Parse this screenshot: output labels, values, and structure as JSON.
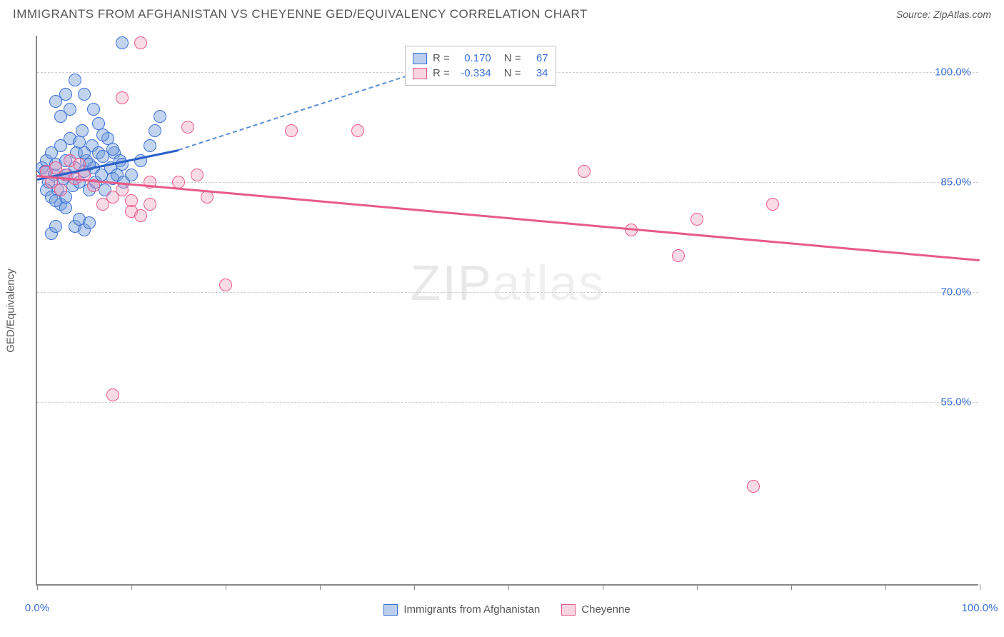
{
  "header": {
    "title": "IMMIGRANTS FROM AFGHANISTAN VS CHEYENNE GED/EQUIVALENCY CORRELATION CHART",
    "source": "Source: ZipAtlas.com"
  },
  "chart": {
    "type": "scatter",
    "ylabel": "GED/Equivalency",
    "xlim": [
      0,
      100
    ],
    "ylim": [
      30,
      105
    ],
    "x_ticks": [
      0,
      10,
      20,
      30,
      40,
      50,
      60,
      70,
      80,
      90,
      100
    ],
    "x_tick_labels": {
      "0": "0.0%",
      "100": "100.0%"
    },
    "y_ticks": [
      55,
      70,
      85,
      100
    ],
    "y_tick_labels": {
      "55": "55.0%",
      "70": "70.0%",
      "85": "85.0%",
      "100": "100.0%"
    },
    "grid_color": "#d0d0d0",
    "axis_color": "#888888",
    "background_color": "#ffffff",
    "watermark": {
      "text_bold": "ZIP",
      "text_thin": "atlas"
    },
    "series": [
      {
        "name": "Immigrants from Afghanistan",
        "color_fill": "rgba(120,160,220,0.45)",
        "color_stroke": "#3a6fd8",
        "marker_radius": 9,
        "points": [
          [
            0.5,
            87
          ],
          [
            0.8,
            86.5
          ],
          [
            1,
            88
          ],
          [
            1.2,
            85
          ],
          [
            1.5,
            89
          ],
          [
            1.8,
            86
          ],
          [
            2,
            87.5
          ],
          [
            2.2,
            84
          ],
          [
            2.5,
            90
          ],
          [
            2.8,
            85.5
          ],
          [
            3,
            88
          ],
          [
            3.2,
            86
          ],
          [
            3.5,
            91
          ],
          [
            3.8,
            84.5
          ],
          [
            4,
            87
          ],
          [
            4.2,
            89
          ],
          [
            4.5,
            85
          ],
          [
            4.8,
            92
          ],
          [
            5,
            86.5
          ],
          [
            5.2,
            88
          ],
          [
            5.5,
            84
          ],
          [
            5.8,
            90
          ],
          [
            6,
            87
          ],
          [
            6.2,
            85
          ],
          [
            6.5,
            89
          ],
          [
            6.8,
            86
          ],
          [
            7,
            88.5
          ],
          [
            7.2,
            84
          ],
          [
            7.5,
            91
          ],
          [
            7.8,
            87
          ],
          [
            8,
            85.5
          ],
          [
            8.2,
            89
          ],
          [
            8.5,
            86
          ],
          [
            8.8,
            88
          ],
          [
            9,
            104
          ],
          [
            9.2,
            85
          ],
          [
            2,
            96
          ],
          [
            2.5,
            94
          ],
          [
            3,
            97
          ],
          [
            3.5,
            95
          ],
          [
            4,
            79
          ],
          [
            4.5,
            80
          ],
          [
            5,
            78.5
          ],
          [
            5.5,
            79.5
          ],
          [
            2.5,
            82
          ],
          [
            3,
            81.5
          ],
          [
            1.5,
            78
          ],
          [
            2,
            79
          ],
          [
            4,
            99
          ],
          [
            5,
            97
          ],
          [
            6,
            95
          ],
          [
            6.5,
            93
          ],
          [
            7,
            91.5
          ],
          [
            8,
            89.5
          ],
          [
            9,
            87.5
          ],
          [
            10,
            86
          ],
          [
            11,
            88
          ],
          [
            12,
            90
          ],
          [
            12.5,
            92
          ],
          [
            13,
            94
          ],
          [
            1,
            84
          ],
          [
            1.5,
            83
          ],
          [
            2,
            82.5
          ],
          [
            3,
            83
          ],
          [
            4.5,
            90.5
          ],
          [
            5,
            89
          ],
          [
            5.5,
            87.5
          ]
        ],
        "trend": {
          "y_at_x0": 85.5,
          "y_at_x15": 89.5,
          "solid_until_x": 15,
          "dash_until_x": 45,
          "y_at_dash_end": 102
        }
      },
      {
        "name": "Cheyenne",
        "color_fill": "rgba(240,150,180,0.35)",
        "color_stroke": "#e85a8a",
        "marker_radius": 9,
        "points": [
          [
            1,
            86.5
          ],
          [
            1.5,
            85
          ],
          [
            2,
            87
          ],
          [
            2.5,
            84
          ],
          [
            3,
            86
          ],
          [
            3.5,
            88
          ],
          [
            4,
            85.5
          ],
          [
            4.5,
            87.5
          ],
          [
            5,
            86
          ],
          [
            6,
            84.5
          ],
          [
            7,
            82
          ],
          [
            8,
            83
          ],
          [
            9,
            84
          ],
          [
            10,
            82.5
          ],
          [
            11,
            104
          ],
          [
            12,
            85
          ],
          [
            9,
            96.5
          ],
          [
            10,
            81
          ],
          [
            11,
            80.5
          ],
          [
            12,
            82
          ],
          [
            15,
            85
          ],
          [
            16,
            92.5
          ],
          [
            17,
            86
          ],
          [
            18,
            83
          ],
          [
            20,
            71
          ],
          [
            27,
            92
          ],
          [
            34,
            92
          ],
          [
            58,
            86.5
          ],
          [
            63,
            78.5
          ],
          [
            68,
            75
          ],
          [
            70,
            80
          ],
          [
            78,
            82
          ],
          [
            76,
            43.5
          ],
          [
            8,
            56
          ]
        ],
        "trend": {
          "y_at_x0": 86,
          "y_at_x100": 74.5
        }
      }
    ],
    "stats_box": {
      "rows": [
        {
          "swatch": "blue",
          "r_label": "R =",
          "r_value": "0.170",
          "n_label": "N =",
          "n_value": "67"
        },
        {
          "swatch": "pink",
          "r_label": "R =",
          "r_value": "-0.334",
          "n_label": "N =",
          "n_value": "34"
        }
      ]
    },
    "bottom_legend": [
      {
        "swatch": "blue",
        "label": "Immigrants from Afghanistan"
      },
      {
        "swatch": "pink",
        "label": "Cheyenne"
      }
    ]
  }
}
